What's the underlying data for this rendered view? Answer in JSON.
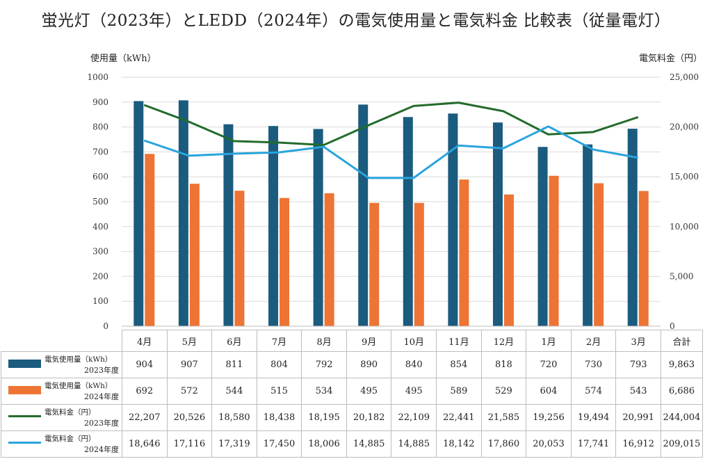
{
  "title": "蛍光灯（2023年）とLEDD（2024年）の電気使用量と電気料金 比較表（従量電灯）",
  "chart_data": {
    "type": "bar",
    "categories": [
      "4月",
      "5月",
      "6月",
      "7月",
      "8月",
      "9月",
      "10月",
      "11月",
      "12月",
      "1月",
      "2月",
      "3月"
    ],
    "total_label": "合計",
    "ylabel_left": "使用量（kWh）",
    "ylabel_right": "電気料金（円）",
    "ylim_left": [
      0,
      1000
    ],
    "ylim_right": [
      0,
      25000
    ],
    "yticks_left": [
      "0",
      "100",
      "200",
      "300",
      "400",
      "500",
      "600",
      "700",
      "800",
      "900",
      "1000"
    ],
    "yticks_right": [
      "0",
      "5,000",
      "10,000",
      "15,000",
      "20,000",
      "25,000"
    ],
    "grid": true,
    "legend": "table-left",
    "series": [
      {
        "name": "電気使用量（kWh）",
        "year": "2023年度",
        "kind": "bar",
        "axis": "left",
        "color": "#1b5b7e",
        "values": [
          904,
          907,
          811,
          804,
          792,
          890,
          840,
          854,
          818,
          720,
          730,
          793
        ],
        "labels": [
          "904",
          "907",
          "811",
          "804",
          "792",
          "890",
          "840",
          "854",
          "818",
          "720",
          "730",
          "793"
        ],
        "total": "9,863"
      },
      {
        "name": "電気使用量（kWh）",
        "year": "2024年度",
        "kind": "bar",
        "axis": "left",
        "color": "#ed7434",
        "values": [
          692,
          572,
          544,
          515,
          534,
          495,
          495,
          589,
          529,
          604,
          574,
          543
        ],
        "labels": [
          "692",
          "572",
          "544",
          "515",
          "534",
          "495",
          "495",
          "589",
          "529",
          "604",
          "574",
          "543"
        ],
        "total": "6,686"
      },
      {
        "name": "電気料金（円）",
        "year": "2023年度",
        "kind": "line",
        "axis": "right",
        "color": "#226b2c",
        "values": [
          22207,
          20526,
          18580,
          18438,
          18195,
          20182,
          22109,
          22441,
          21585,
          19256,
          19494,
          20991
        ],
        "labels": [
          "22,207",
          "20,526",
          "18,580",
          "18,438",
          "18,195",
          "20,182",
          "22,109",
          "22,441",
          "21,585",
          "19,256",
          "19,494",
          "20,991"
        ],
        "total": "244,004"
      },
      {
        "name": "電気料金（円）",
        "year": "2024年度",
        "kind": "line",
        "axis": "right",
        "color": "#28a4dd",
        "values": [
          18646,
          17116,
          17319,
          17450,
          18006,
          14885,
          14885,
          18142,
          17860,
          20053,
          17741,
          16912
        ],
        "labels": [
          "18,646",
          "17,116",
          "17,319",
          "17,450",
          "18,006",
          "14,885",
          "14,885",
          "18,142",
          "17,860",
          "20,053",
          "17,741",
          "16,912"
        ],
        "total": "209,015"
      }
    ]
  }
}
